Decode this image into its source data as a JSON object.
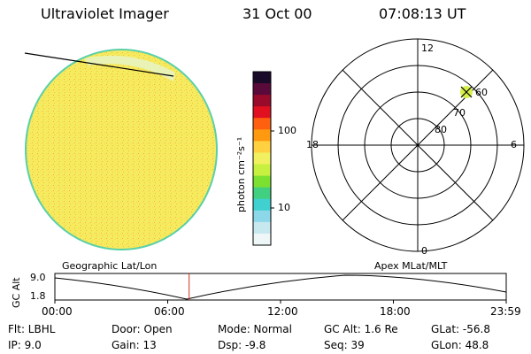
{
  "header": {
    "title": "Ultraviolet Imager",
    "date": "31 Oct 00",
    "time": "07:08:13 UT"
  },
  "colorbar": {
    "unit_label": "photon cm⁻²s⁻¹",
    "ticks": [
      {
        "label": "100",
        "value": 100
      },
      {
        "label": "10",
        "value": 10
      }
    ],
    "colors_top_to_bottom": [
      "#1a0a2a",
      "#5a0a3a",
      "#9a0a2a",
      "#e01020",
      "#ff6010",
      "#ff9a10",
      "#ffd040",
      "#f0f060",
      "#c8f040",
      "#7ce030",
      "#40d080",
      "#40d0d0",
      "#8cd8e8",
      "#c8e8f0",
      "#eef6f8"
    ]
  },
  "earth_image": {
    "fill_color": "#f6ea5e",
    "speckle_color": "#f4c63e",
    "limb_color": "#5ad0a8"
  },
  "polar_plot": {
    "mlt_labels": {
      "top": "12",
      "right": "6",
      "bottom": "0",
      "left": "18"
    },
    "lat_labels": [
      "60",
      "70",
      "80"
    ],
    "marker_color": "#d8f04a"
  },
  "timeline": {
    "left_title": "Geographic Lat/Lon",
    "right_title": "Apex MLat/MLT",
    "y_label": "GC Alt",
    "y_ticks": [
      "9.0",
      "1.8"
    ],
    "x_ticks": [
      "00:00",
      "06:00",
      "12:00",
      "18:00",
      "23:59"
    ],
    "current_time_fraction": 0.2974,
    "marker_color": "#d03020"
  },
  "info": {
    "col1": [
      "Flt: LBHL",
      "IP:  9.0"
    ],
    "col2": [
      "Door: Open",
      "Gain: 13"
    ],
    "col3": [
      "Mode: Normal",
      "Dsp:    -9.8"
    ],
    "col4": [
      "GC Alt: 1.6 Re",
      "Seq: 39"
    ],
    "col5": [
      "GLat: -56.8",
      "GLon:  48.8"
    ]
  }
}
